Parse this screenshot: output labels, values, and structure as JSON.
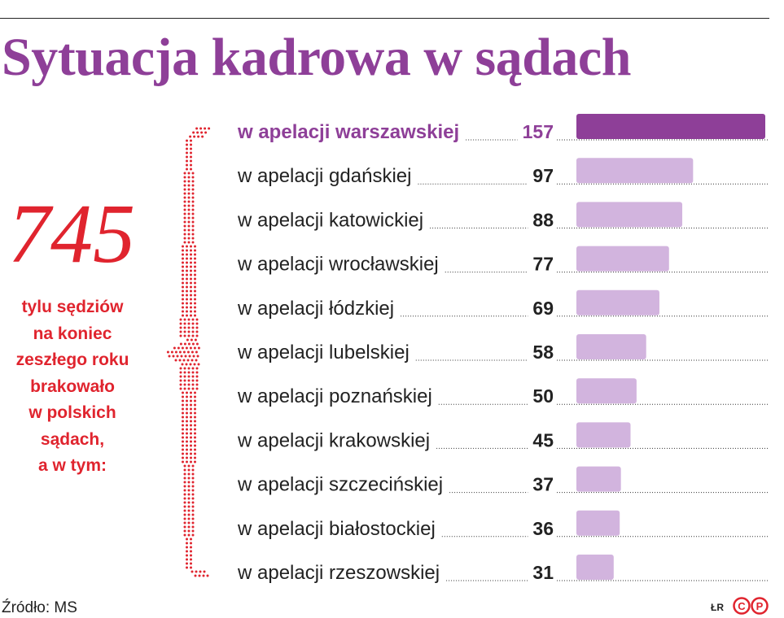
{
  "title": "Sytuacja kadrowa w sądach",
  "summary": {
    "total": "745",
    "description": [
      "tylu sędziów",
      "na koniec",
      "zeszłego roku",
      "brakowało",
      "w polskich",
      "sądach,",
      "a w tym:"
    ]
  },
  "chart_data": {
    "type": "bar",
    "orientation": "horizontal",
    "categories": [
      "w apelacji warszawskiej",
      "w apelacji gdańskiej",
      "w apelacji katowickiej",
      "w apelacji wrocławskiej",
      "w apelacji łódzkiej",
      "w apelacji lubelskiej",
      "w apelacji poznańskiej",
      "w apelacji krakowskiej",
      "w apelacji szczecińskiej",
      "w apelacji białostockiej",
      "w apelacji rzeszowskiej"
    ],
    "values": [
      157,
      97,
      88,
      77,
      69,
      58,
      50,
      45,
      37,
      36,
      31
    ],
    "highlight_index": 0,
    "title": "",
    "xlabel": "",
    "ylabel": "",
    "xlim": [
      0,
      157
    ],
    "grid": false,
    "legend": "none"
  },
  "colors": {
    "title": "#8e3f98",
    "highlight_bar": "#8e3f98",
    "bar": "#d2b4de",
    "accent": "#e0242e",
    "text": "#222222"
  },
  "footer": {
    "source": "Źródło: MS",
    "credit": "ŁR",
    "logo_letters": [
      "C",
      "P"
    ]
  }
}
